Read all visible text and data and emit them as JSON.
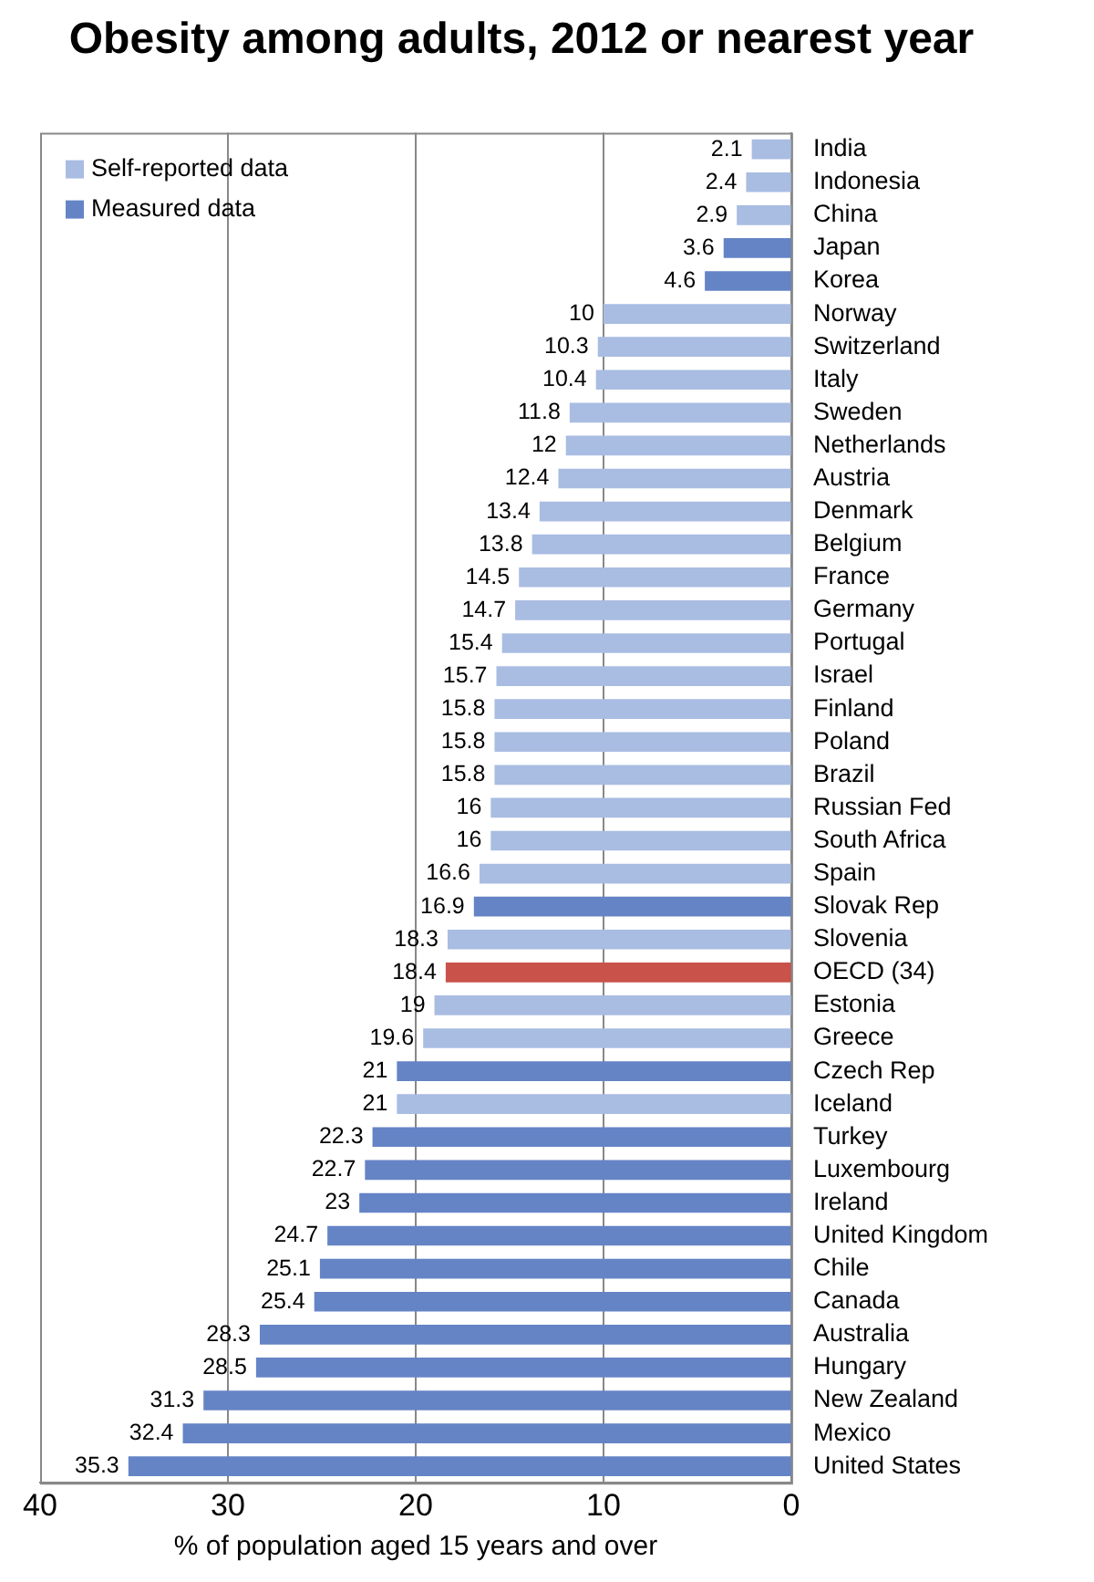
{
  "chart_data": {
    "type": "bar",
    "orientation": "horizontal",
    "title": "Obesity among adults, 2012 or nearest year",
    "xlabel": "% of population aged 15 years and over",
    "categories": [
      "India",
      "Indonesia",
      "China",
      "Japan",
      "Korea",
      "Norway",
      "Switzerland",
      "Italy",
      "Sweden",
      "Netherlands",
      "Austria",
      "Denmark",
      "Belgium",
      "France",
      "Germany",
      "Portugal",
      "Israel",
      "Finland",
      "Poland",
      "Brazil",
      "Russian Fed",
      "South Africa",
      "Spain",
      "Slovak Rep",
      "Slovenia",
      "OECD (34)",
      "Estonia",
      "Greece",
      "Czech Rep",
      "Iceland",
      "Turkey",
      "Luxembourg",
      "Ireland",
      "United Kingdom",
      "Chile",
      "Canada",
      "Australia",
      "Hungary",
      "New Zealand",
      "Mexico",
      "United States"
    ],
    "series": [
      {
        "name": "Self-reported data",
        "color": "#a9bce2",
        "values": [
          2.1,
          2.4,
          2.9,
          null,
          null,
          10,
          10.3,
          10.4,
          11.8,
          12,
          12.4,
          13.4,
          13.8,
          14.5,
          14.7,
          15.4,
          15.7,
          15.8,
          15.8,
          15.8,
          16,
          16,
          16.6,
          null,
          18.3,
          null,
          19,
          19.6,
          null,
          21,
          null,
          null,
          null,
          null,
          null,
          null,
          null,
          null,
          null,
          null,
          null
        ]
      },
      {
        "name": "Measured data",
        "color": "#6584c6",
        "values": [
          null,
          null,
          null,
          3.6,
          4.6,
          null,
          null,
          null,
          null,
          null,
          null,
          null,
          null,
          null,
          null,
          null,
          null,
          null,
          null,
          null,
          null,
          null,
          null,
          16.9,
          null,
          null,
          null,
          null,
          21,
          null,
          22.3,
          22.7,
          23,
          24.7,
          25.1,
          25.4,
          28.3,
          28.5,
          31.3,
          32.4,
          35.3
        ]
      },
      {
        "color": "#c9524b",
        "values": [
          null,
          null,
          null,
          null,
          null,
          null,
          null,
          null,
          null,
          null,
          null,
          null,
          null,
          null,
          null,
          null,
          null,
          null,
          null,
          null,
          null,
          null,
          null,
          null,
          null,
          18.4,
          null,
          null,
          null,
          null,
          null,
          null,
          null,
          null,
          null,
          null,
          null,
          null,
          null,
          null,
          null
        ]
      }
    ],
    "xlim": [
      40,
      0
    ],
    "xticks": [
      40,
      30,
      20,
      10,
      0
    ],
    "grid": "x",
    "legend": "top left",
    "data_labels": true
  }
}
